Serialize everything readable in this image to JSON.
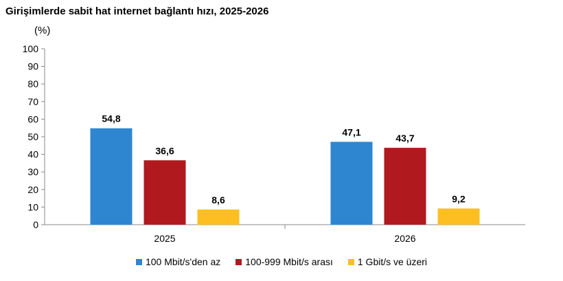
{
  "chart_data": {
    "type": "bar",
    "title": "Girişimlerde sabit hat internet bağlantı hızı, 2025-2026",
    "ylabel": "(%)",
    "xlabel": "",
    "ylim": [
      0,
      100
    ],
    "yticks": [
      0,
      10,
      20,
      30,
      40,
      50,
      60,
      70,
      80,
      90,
      100
    ],
    "categories": [
      "2025",
      "2026"
    ],
    "series": [
      {
        "name": "100 Mbit/s'den az",
        "values": [
          54.8,
          47.1
        ],
        "labels": [
          "54,8",
          "47,1"
        ],
        "color": "#2E86D1"
      },
      {
        "name": "100-999 Mbit/s arası",
        "values": [
          36.6,
          43.7
        ],
        "labels": [
          "36,6",
          "43,7"
        ],
        "color": "#B0191E"
      },
      {
        "name": "1 Gbit/s ve üzeri",
        "values": [
          8.6,
          9.2
        ],
        "labels": [
          "8,6",
          "9,2"
        ],
        "color": "#FBBF22"
      }
    ],
    "grid": false,
    "legend_position": "bottom"
  }
}
